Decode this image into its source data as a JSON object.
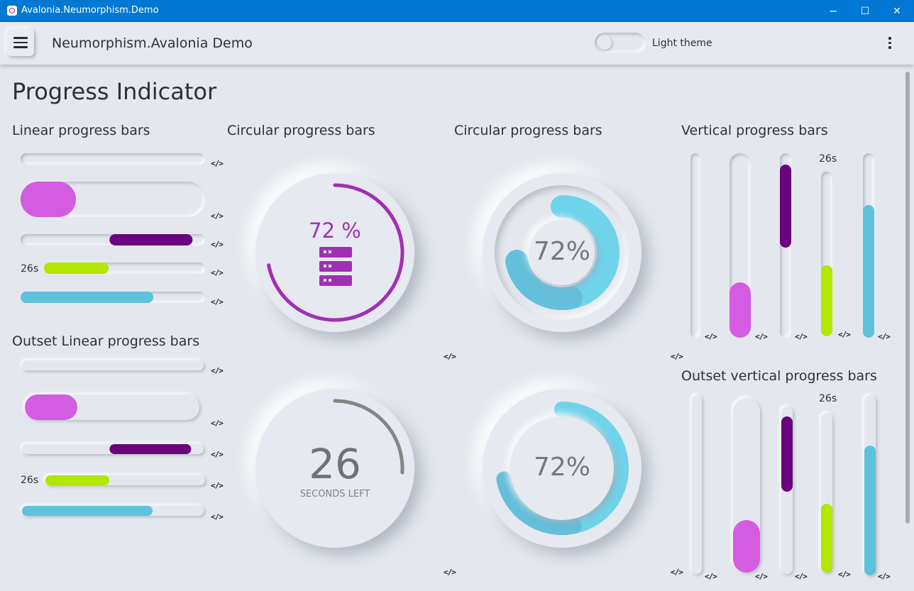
{
  "window": {
    "title": "Avalonia.Neumorphism.Demo",
    "controls": {
      "minimize": "─",
      "maximize": "☐",
      "close": "✕"
    }
  },
  "appbar": {
    "title": "Neumorphism.Avalonia Demo",
    "theme_toggle_label": "Light theme",
    "menu_icon": "hamburger-icon",
    "more_icon": "kebab-icon"
  },
  "page": {
    "title": "Progress Indicator"
  },
  "code_label": "</>",
  "sections": {
    "linear": "Linear progress bars",
    "outset_linear": "Outset Linear progress bars",
    "circular_1": "Circular progress bars",
    "circular_2": "Circular progress bars",
    "vertical": "Vertical progress bars",
    "outset_vertical": "Outset vertical progress bars"
  },
  "linear_bars": [
    {
      "value": 0,
      "color": "#e4e8ee"
    },
    {
      "value": 0.3,
      "color": "#d45ce0"
    },
    {
      "value": 0.45,
      "color": "#6a037e",
      "indeterminate": true
    },
    {
      "value": 0.4,
      "color": "#b3e600",
      "label": "26s"
    },
    {
      "value": 0.72,
      "color": "#5ec2dc"
    }
  ],
  "outset_linear_bars": [
    {
      "value": 0,
      "color": "#e4e8ee"
    },
    {
      "value": 0.3,
      "color": "#d45ce0"
    },
    {
      "value": 0.45,
      "color": "#6a037e",
      "indeterminate": true
    },
    {
      "value": 0.4,
      "color": "#b3e600",
      "label": "26s"
    },
    {
      "value": 0.72,
      "color": "#5ec2dc"
    }
  ],
  "circular": {
    "server": {
      "value": 0.72,
      "text": "72 %",
      "color": "#a12fb4",
      "icon": "server-icon"
    },
    "timer": {
      "value": 26,
      "max": 100,
      "text": "26",
      "subtext": "SECONDS LEFT",
      "color": "#858585"
    },
    "ring_1": {
      "value": 0.72,
      "text": "72%",
      "color": "#6fd3ea"
    },
    "ring_2": {
      "value": 0.72,
      "text": "72%",
      "color": "#6fd3ea"
    }
  },
  "vertical_bars": {
    "label": "26s",
    "items": [
      {
        "value": 0,
        "color": "#e4e8ee"
      },
      {
        "value": 0.3,
        "color": "#d45ce0"
      },
      {
        "value": 0.45,
        "color": "#6a037e",
        "indeterminate": true
      },
      {
        "value": 0.43,
        "color": "#b3e600"
      },
      {
        "value": 0.72,
        "color": "#5ec2dc"
      }
    ]
  },
  "outset_vertical_bars": {
    "label": "26s",
    "items": [
      {
        "value": 0,
        "color": "#e4e8ee"
      },
      {
        "value": 0.3,
        "color": "#d45ce0"
      },
      {
        "value": 0.45,
        "color": "#6a037e",
        "indeterminate": true
      },
      {
        "value": 0.43,
        "color": "#b3e600"
      },
      {
        "value": 0.72,
        "color": "#5ec2dc"
      }
    ]
  }
}
